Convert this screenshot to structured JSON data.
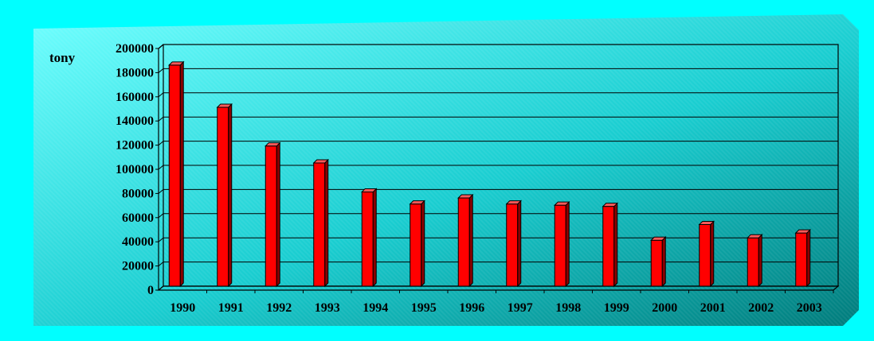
{
  "chart_data": {
    "type": "bar",
    "title": "",
    "xlabel": "",
    "ylabel": "tony",
    "categories": [
      "1990",
      "1991",
      "1992",
      "1993",
      "1994",
      "1995",
      "1996",
      "1997",
      "1998",
      "1999",
      "2000",
      "2001",
      "2002",
      "2003"
    ],
    "values": [
      183000,
      148000,
      116000,
      102000,
      78000,
      68000,
      73000,
      68000,
      67000,
      66000,
      38000,
      51000,
      40000,
      44000
    ],
    "ylim": [
      0,
      200000
    ],
    "yticks": [
      "0",
      "20000",
      "40000",
      "60000",
      "80000",
      "100000",
      "120000",
      "140000",
      "160000",
      "180000",
      "200000"
    ],
    "grid": true,
    "legend": "none",
    "colors": {
      "bar_front": "#ff0000",
      "bar_side": "#8a0000",
      "bar_top": "#ff5a5a",
      "panel_light": "#5fffff",
      "panel_dark": "#007b7b",
      "frame": "#00ffff",
      "gridline": "#000000"
    }
  }
}
